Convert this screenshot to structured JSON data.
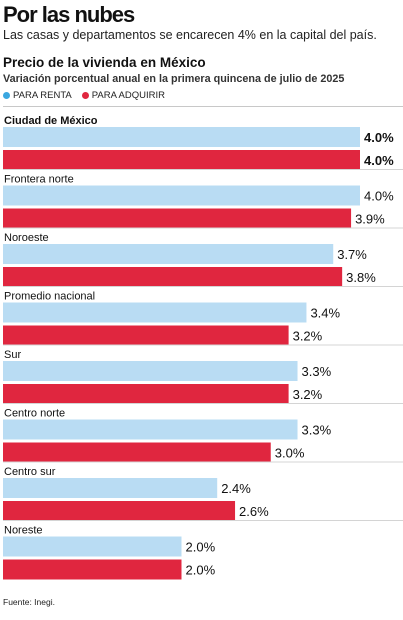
{
  "headline": "Por las nubes",
  "subheadline": "Las casas y departamentos se encarecen 4% en la capital del país.",
  "source": "Fuente: Inegi.",
  "chart_data": {
    "type": "bar",
    "orientation": "horizontal",
    "title": "Precio de la vivienda en México",
    "subtitle": "Variación porcentual anual en la primera quincena de julio de 2025",
    "legend_position": "top-left",
    "categories": [
      "Ciudad de México",
      "Frontera norte",
      "Noroeste",
      "Promedio nacional",
      "Sur",
      "Centro norte",
      "Centro sur",
      "Noreste"
    ],
    "series": [
      {
        "name": "PARA RENTA",
        "color": "#b9dcf3",
        "dot_color": "#3aa7e0",
        "values": [
          4.0,
          4.0,
          3.7,
          3.4,
          3.3,
          3.3,
          2.4,
          2.0
        ]
      },
      {
        "name": "PARA ADQUIRIR",
        "color": "#e0263f",
        "dot_color": "#e0263f",
        "values": [
          4.0,
          3.9,
          3.8,
          3.2,
          3.2,
          3.0,
          2.6,
          2.0
        ]
      }
    ],
    "value_labels": [
      [
        "4.0%",
        "4.0%",
        "3.7%",
        "3.4%",
        "3.3%",
        "3.3%",
        "2.4%",
        "2.0%"
      ],
      [
        "4.0%",
        "3.9%",
        "3.8%",
        "3.2%",
        "3.2%",
        "3.0%",
        "2.6%",
        "2.0%"
      ]
    ],
    "bold_categories": [
      "Ciudad de México"
    ],
    "xlim": [
      0,
      4.0
    ],
    "grid": false
  }
}
